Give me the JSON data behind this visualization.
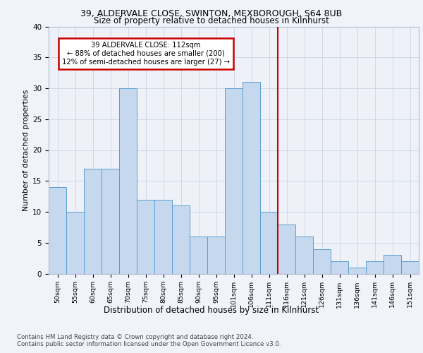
{
  "title1": "39, ALDERVALE CLOSE, SWINTON, MEXBOROUGH, S64 8UB",
  "title2": "Size of property relative to detached houses in Kilnhurst",
  "xlabel": "Distribution of detached houses by size in Kilnhurst",
  "ylabel": "Number of detached properties",
  "footer1": "Contains HM Land Registry data © Crown copyright and database right 2024.",
  "footer2": "Contains public sector information licensed under the Open Government Licence v3.0.",
  "categories": [
    "50sqm",
    "55sqm",
    "60sqm",
    "65sqm",
    "70sqm",
    "75sqm",
    "80sqm",
    "85sqm",
    "90sqm",
    "95sqm",
    "101sqm",
    "106sqm",
    "111sqm",
    "116sqm",
    "121sqm",
    "126sqm",
    "131sqm",
    "136sqm",
    "141sqm",
    "146sqm",
    "151sqm"
  ],
  "values": [
    14,
    10,
    17,
    17,
    30,
    12,
    12,
    11,
    6,
    6,
    30,
    31,
    10,
    8,
    6,
    4,
    2,
    1,
    2,
    3,
    2
  ],
  "bar_color": "#c5d8ed",
  "bar_edge_color": "#5a9fd4",
  "bar_edge_width": 0.7,
  "grid_color": "#d0d8e8",
  "fig_bg_color": "#f0f4fa",
  "ax_bg_color": "#eef2f8",
  "red_line_index": 12,
  "red_line_color": "#cc0000",
  "annotation_text": "39 ALDERVALE CLOSE: 112sqm\n← 88% of detached houses are smaller (200)\n12% of semi-detached houses are larger (27) →",
  "annotation_box_facecolor": "#ffffff",
  "annotation_box_edgecolor": "#cc0000",
  "ylim": [
    0,
    40
  ],
  "yticks": [
    0,
    5,
    10,
    15,
    20,
    25,
    30,
    35,
    40
  ]
}
